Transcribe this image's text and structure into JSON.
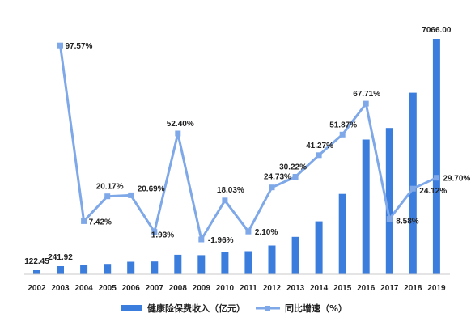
{
  "chart_data": {
    "type": "bar+line",
    "categories": [
      "2002",
      "2003",
      "2004",
      "2005",
      "2006",
      "2007",
      "2008",
      "2009",
      "2010",
      "2011",
      "2012",
      "2013",
      "2014",
      "2015",
      "2016",
      "2017",
      "2018",
      "2019"
    ],
    "series": [
      {
        "name": "健康险保费收入（亿元）",
        "type": "bar",
        "color": "#3b7ddd",
        "values": [
          122.45,
          241.92,
          270,
          310,
          376,
          384,
          585,
          574,
          677,
          692,
          863,
          1123,
          1587,
          2410,
          4043,
          4389,
          5448,
          7066.0
        ],
        "labels": [
          "122.45",
          "241.92",
          "",
          "",
          "",
          "",
          "",
          "",
          "",
          "",
          "",
          "",
          "",
          "",
          "",
          "",
          "",
          "7066.00"
        ]
      },
      {
        "name": "同比增速（%）",
        "type": "line",
        "color": "#7fa8e8",
        "values": [
          null,
          97.57,
          7.42,
          20.17,
          20.69,
          1.93,
          52.4,
          -1.96,
          18.03,
          2.1,
          24.73,
          30.22,
          41.27,
          51.87,
          67.71,
          8.58,
          24.12,
          29.7
        ],
        "labels": [
          "",
          "97.57%",
          "7.42%",
          "20.17%",
          "20.69%",
          "1.93%",
          "52.40%",
          "-1.96%",
          "18.03%",
          "2.10%",
          "24.73%",
          "30.22%",
          "41.27%",
          "51.87%",
          "67.71%",
          "8.58%",
          "24.12%",
          "29.70%"
        ]
      }
    ],
    "bar_ylim": [
      0,
      7800
    ],
    "line_ylim": [
      -10,
      110
    ],
    "legend_position": "bottom",
    "grid": false
  }
}
